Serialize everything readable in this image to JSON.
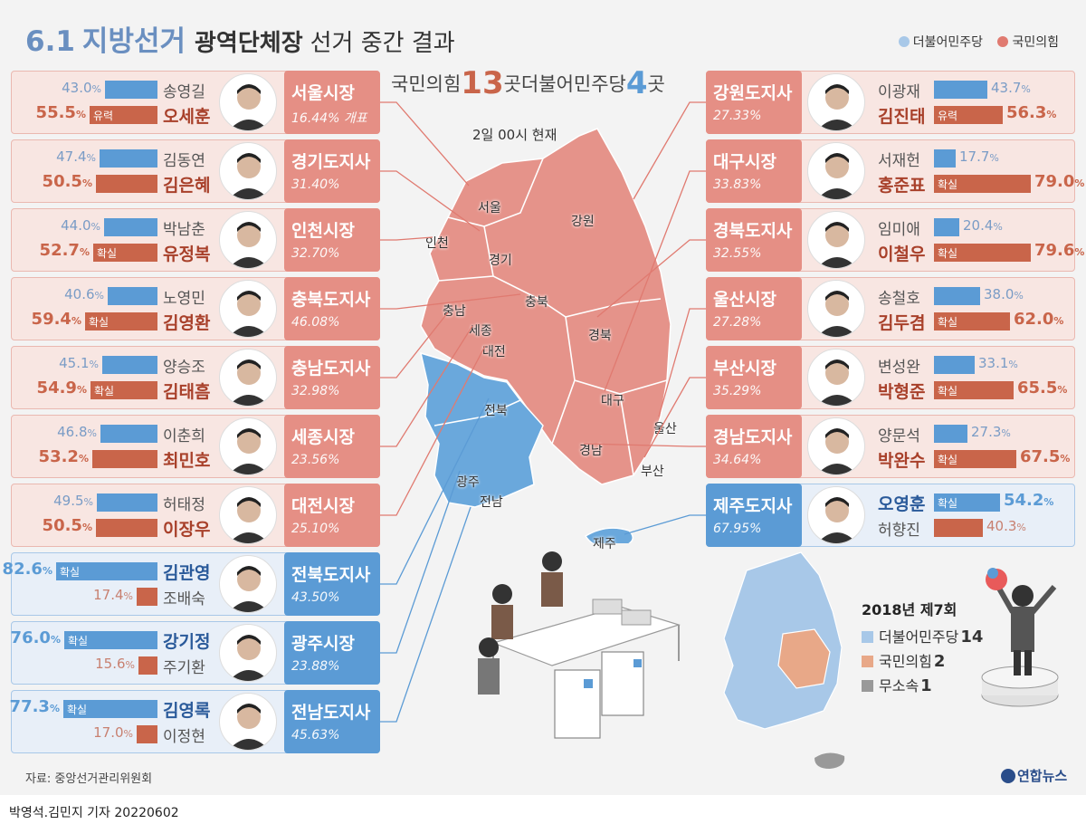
{
  "header": {
    "date": "6.1",
    "main": "지방선거",
    "sub": "광역단체장",
    "rest": "선거 중간 결과"
  },
  "legend": {
    "dem_label": "더불어민주당",
    "ppp_label": "국민의힘"
  },
  "colors": {
    "dem": "#5b9bd5",
    "dem_light": "#a8c8e8",
    "dem_panel": "#e8eff8",
    "ppp": "#e07a70",
    "ppp_bar": "#c9654a",
    "ppp_region": "#e58f85",
    "ppp_panel": "#f8e6e2",
    "ind": "#999999",
    "inset_ppp": "#e8a888"
  },
  "summary": {
    "ppp_party": "국민의힘",
    "ppp_count": "13",
    "dem_party": "곳더불어민주당",
    "dem_count": "4",
    "unit": "곳"
  },
  "as_of": "2일 00시 현재",
  "races": [
    {
      "region": "서울시장",
      "rate": "16.44% 개표",
      "side": "left",
      "winner_party": "ppp",
      "candidates": [
        {
          "name": "송영길",
          "party": "dem",
          "pct": "43.0",
          "tag": ""
        },
        {
          "name": "오세훈",
          "party": "ppp",
          "pct": "55.5",
          "tag": "유력"
        }
      ]
    },
    {
      "region": "경기도지사",
      "rate": "31.40%",
      "side": "left",
      "winner_party": "ppp",
      "candidates": [
        {
          "name": "김동연",
          "party": "dem",
          "pct": "47.4",
          "tag": ""
        },
        {
          "name": "김은혜",
          "party": "ppp",
          "pct": "50.5",
          "tag": ""
        }
      ]
    },
    {
      "region": "인천시장",
      "rate": "32.70%",
      "side": "left",
      "winner_party": "ppp",
      "candidates": [
        {
          "name": "박남춘",
          "party": "dem",
          "pct": "44.0",
          "tag": ""
        },
        {
          "name": "유정복",
          "party": "ppp",
          "pct": "52.7",
          "tag": "확실"
        }
      ]
    },
    {
      "region": "충북도지사",
      "rate": "46.08%",
      "side": "left",
      "winner_party": "ppp",
      "candidates": [
        {
          "name": "노영민",
          "party": "dem",
          "pct": "40.6",
          "tag": ""
        },
        {
          "name": "김영환",
          "party": "ppp",
          "pct": "59.4",
          "tag": "확실"
        }
      ]
    },
    {
      "region": "충남도지사",
      "rate": "32.98%",
      "side": "left",
      "winner_party": "ppp",
      "candidates": [
        {
          "name": "양승조",
          "party": "dem",
          "pct": "45.1",
          "tag": ""
        },
        {
          "name": "김태흠",
          "party": "ppp",
          "pct": "54.9",
          "tag": "확실"
        }
      ]
    },
    {
      "region": "세종시장",
      "rate": "23.56%",
      "side": "left",
      "winner_party": "ppp",
      "candidates": [
        {
          "name": "이춘희",
          "party": "dem",
          "pct": "46.8",
          "tag": ""
        },
        {
          "name": "최민호",
          "party": "ppp",
          "pct": "53.2",
          "tag": ""
        }
      ]
    },
    {
      "region": "대전시장",
      "rate": "25.10%",
      "side": "left",
      "winner_party": "ppp",
      "candidates": [
        {
          "name": "허태정",
          "party": "dem",
          "pct": "49.5",
          "tag": ""
        },
        {
          "name": "이장우",
          "party": "ppp",
          "pct": "50.5",
          "tag": ""
        }
      ]
    },
    {
      "region": "전북도지사",
      "rate": "43.50%",
      "side": "left",
      "winner_party": "dem",
      "candidates": [
        {
          "name": "김관영",
          "party": "dem",
          "pct": "82.6",
          "tag": "확실"
        },
        {
          "name": "조배숙",
          "party": "ppp",
          "pct": "17.4",
          "tag": ""
        }
      ]
    },
    {
      "region": "광주시장",
      "rate": "23.88%",
      "side": "left",
      "winner_party": "dem",
      "candidates": [
        {
          "name": "강기정",
          "party": "dem",
          "pct": "76.0",
          "tag": "확실"
        },
        {
          "name": "주기환",
          "party": "ppp",
          "pct": "15.6",
          "tag": ""
        }
      ]
    },
    {
      "region": "전남도지사",
      "rate": "45.63%",
      "side": "left",
      "winner_party": "dem",
      "candidates": [
        {
          "name": "김영록",
          "party": "dem",
          "pct": "77.3",
          "tag": "확실"
        },
        {
          "name": "이정현",
          "party": "ppp",
          "pct": "17.0",
          "tag": ""
        }
      ]
    },
    {
      "region": "강원도지사",
      "rate": "27.33%",
      "side": "right",
      "winner_party": "ppp",
      "candidates": [
        {
          "name": "이광재",
          "party": "dem",
          "pct": "43.7",
          "tag": ""
        },
        {
          "name": "김진태",
          "party": "ppp",
          "pct": "56.3",
          "tag": "유력"
        }
      ]
    },
    {
      "region": "대구시장",
      "rate": "33.83%",
      "side": "right",
      "winner_party": "ppp",
      "candidates": [
        {
          "name": "서재헌",
          "party": "dem",
          "pct": "17.7",
          "tag": ""
        },
        {
          "name": "홍준표",
          "party": "ppp",
          "pct": "79.0",
          "tag": "확실"
        }
      ]
    },
    {
      "region": "경북도지사",
      "rate": "32.55%",
      "side": "right",
      "winner_party": "ppp",
      "candidates": [
        {
          "name": "임미애",
          "party": "dem",
          "pct": "20.4",
          "tag": ""
        },
        {
          "name": "이철우",
          "party": "ppp",
          "pct": "79.6",
          "tag": "확실"
        }
      ]
    },
    {
      "region": "울산시장",
      "rate": "27.28%",
      "side": "right",
      "winner_party": "ppp",
      "candidates": [
        {
          "name": "송철호",
          "party": "dem",
          "pct": "38.0",
          "tag": ""
        },
        {
          "name": "김두겸",
          "party": "ppp",
          "pct": "62.0",
          "tag": "확실"
        }
      ]
    },
    {
      "region": "부산시장",
      "rate": "35.29%",
      "side": "right",
      "winner_party": "ppp",
      "candidates": [
        {
          "name": "변성완",
          "party": "dem",
          "pct": "33.1",
          "tag": ""
        },
        {
          "name": "박형준",
          "party": "ppp",
          "pct": "65.5",
          "tag": "확실"
        }
      ]
    },
    {
      "region": "경남도지사",
      "rate": "34.64%",
      "side": "right",
      "winner_party": "ppp",
      "candidates": [
        {
          "name": "양문석",
          "party": "dem",
          "pct": "27.3",
          "tag": ""
        },
        {
          "name": "박완수",
          "party": "ppp",
          "pct": "67.5",
          "tag": "확실"
        }
      ]
    },
    {
      "region": "제주도지사",
      "rate": "67.95%",
      "side": "right",
      "winner_party": "dem",
      "candidates": [
        {
          "name": "오영훈",
          "party": "dem",
          "pct": "54.2",
          "tag": "확실"
        },
        {
          "name": "허향진",
          "party": "ppp",
          "pct": "40.3",
          "tag": ""
        }
      ]
    }
  ],
  "map_labels": [
    {
      "name": "서울"
    },
    {
      "name": "인천"
    },
    {
      "name": "경기"
    },
    {
      "name": "강원"
    },
    {
      "name": "충남"
    },
    {
      "name": "충북"
    },
    {
      "name": "세종"
    },
    {
      "name": "대전"
    },
    {
      "name": "경북"
    },
    {
      "name": "대구"
    },
    {
      "name": "전북"
    },
    {
      "name": "울산"
    },
    {
      "name": "광주"
    },
    {
      "name": "전남"
    },
    {
      "name": "경남"
    },
    {
      "name": "부산"
    },
    {
      "name": "제주"
    }
  ],
  "inset": {
    "title": "2018년 제7회",
    "items": [
      {
        "label": "더불어민주당",
        "count": "14"
      },
      {
        "label": "국민의힘",
        "count": "2"
      },
      {
        "label": "무소속",
        "count": "1"
      }
    ]
  },
  "chart_data": {
    "type": "bar",
    "unit": "%",
    "categories": [
      "서울시장",
      "경기도지사",
      "인천시장",
      "충북도지사",
      "충남도지사",
      "세종시장",
      "대전시장",
      "전북도지사",
      "광주시장",
      "전남도지사",
      "강원도지사",
      "대구시장",
      "경북도지사",
      "울산시장",
      "부산시장",
      "경남도지사",
      "제주도지사"
    ],
    "counting_rate": [
      16.44,
      31.4,
      32.7,
      46.08,
      32.98,
      23.56,
      25.1,
      43.5,
      23.88,
      45.63,
      27.33,
      33.83,
      32.55,
      27.28,
      35.29,
      34.64,
      67.95
    ],
    "series": [
      {
        "name": "더불어민주당",
        "values": [
          43.0,
          47.4,
          44.0,
          40.6,
          45.1,
          46.8,
          49.5,
          82.6,
          76.0,
          77.3,
          43.7,
          17.7,
          20.4,
          38.0,
          33.1,
          27.3,
          54.2
        ]
      },
      {
        "name": "국민의힘",
        "values": [
          55.5,
          50.5,
          52.7,
          59.4,
          54.9,
          53.2,
          50.5,
          17.4,
          15.6,
          17.0,
          56.3,
          79.0,
          79.6,
          62.0,
          65.5,
          67.5,
          40.3
        ]
      }
    ],
    "ylim": [
      0,
      100
    ]
  },
  "footer": {
    "source": "자료: 중앙선거관리위원회",
    "brand": "연합뉴스",
    "credit": "박영석.김민지 기자  20220602"
  }
}
